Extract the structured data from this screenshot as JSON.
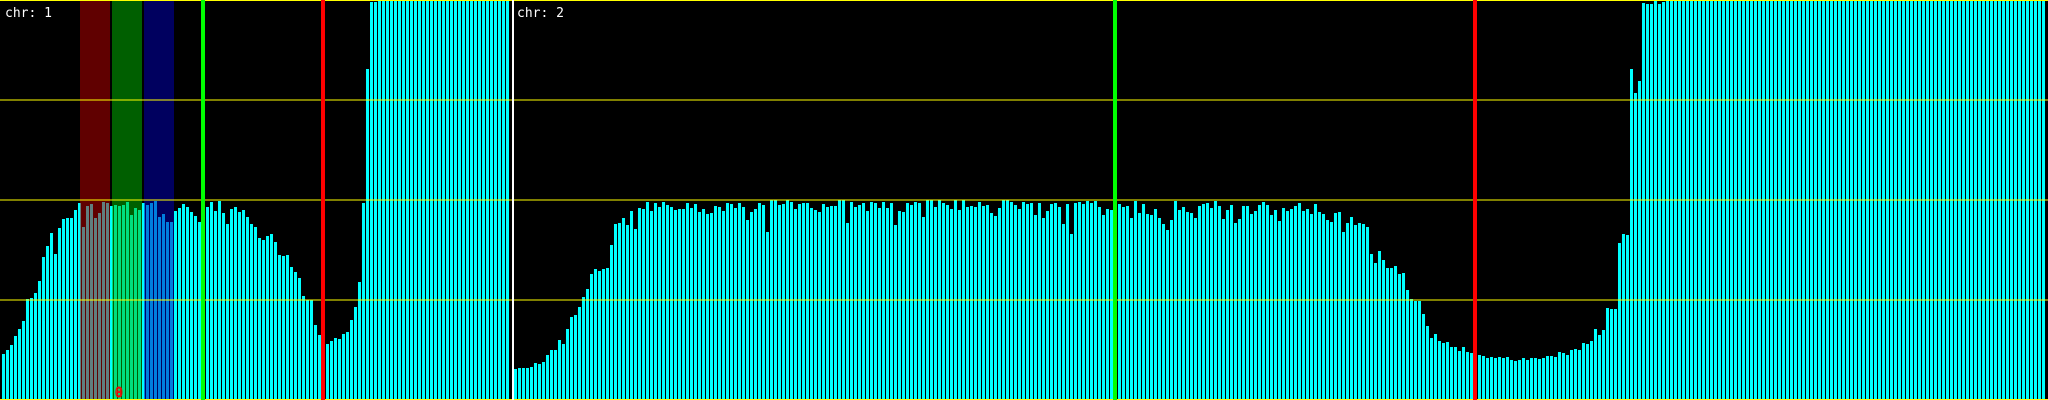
{
  "chart_data": {
    "type": "bar",
    "ylim": [
      0,
      4
    ],
    "grid": true,
    "gridlines_y": [
      0,
      1,
      2,
      3,
      4
    ],
    "colors": {
      "background": "#000000",
      "bar": "#00ffff",
      "grid": "#ffff00",
      "separator": "#ffffff",
      "label": "#ffffff",
      "marker_green": "#00ff00",
      "marker_red": "#ff0000",
      "region_red": "#c00000",
      "region_green": "#00be00",
      "region_blue": "#0000be",
      "point_label": "#ff0000"
    },
    "panels": [
      {
        "label": "chr: 1",
        "values": [
          0.46,
          0.5,
          0.55,
          0.64,
          0.71,
          0.79,
          1.01,
          1.02,
          1.07,
          1.19,
          1.43,
          1.54,
          1.67,
          1.46,
          1.72,
          1.81,
          1.82,
          1.82,
          1.9,
          1.97,
          1.73,
          1.94,
          1.96,
          1.82,
          1.87,
          1.98,
          1.97,
          1.94,
          1.95,
          1.94,
          1.95,
          1.98,
          1.85,
          1.92,
          1.9,
          1.97,
          1.95,
          1.97,
          1.99,
          1.83,
          1.86,
          1.78,
          1.78,
          1.89,
          1.92,
          1.96,
          1.93,
          1.88,
          1.84,
          1.78,
          1.86,
          1.93,
          1.98,
          1.89,
          1.99,
          1.87,
          1.76,
          1.91,
          1.93,
          1.88,
          1.9,
          1.83,
          1.76,
          1.73,
          1.62,
          1.6,
          1.64,
          1.66,
          1.58,
          1.45,
          1.44,
          1.45,
          1.33,
          1.28,
          1.22,
          1.04,
          1.0,
          1.0,
          0.75,
          0.65,
          0.61,
          0.56,
          0.59,
          0.62,
          0.61,
          0.66,
          0.68,
          0.8,
          0.93,
          1.18,
          1.97,
          3.31,
          3.98,
          3.98,
          4,
          4,
          4,
          4,
          4,
          4,
          4,
          4,
          4,
          4,
          4,
          4,
          4,
          4,
          4,
          4,
          4,
          4,
          4,
          4,
          4,
          4,
          4,
          4,
          4,
          4,
          4,
          4,
          4,
          4,
          4,
          4,
          4
        ],
        "regions": [
          {
            "color": "region_red",
            "start_bin": 19.5,
            "end_bin": 27
          },
          {
            "color": "region_green",
            "start_bin": 27.5,
            "end_bin": 35
          },
          {
            "color": "region_blue",
            "start_bin": 35.5,
            "end_bin": 43
          }
        ],
        "markers": [
          {
            "color": "marker_green",
            "bin": 50.25
          },
          {
            "color": "marker_red",
            "bin": 80.25
          }
        ],
        "point_labels": [
          {
            "text": "0",
            "bin": 28.5
          }
        ]
      },
      {
        "label": "chr: 2",
        "values": [
          0.31,
          0.32,
          0.32,
          0.32,
          0.33,
          0.37,
          0.36,
          0.38,
          0.45,
          0.5,
          0.5,
          0.6,
          0.56,
          0.71,
          0.83,
          0.85,
          0.93,
          1.03,
          1.11,
          1.26,
          1.31,
          1.29,
          1.31,
          1.32,
          1.55,
          1.76,
          1.77,
          1.82,
          1.75,
          1.89,
          1.71,
          1.92,
          1.91,
          1.98,
          1.89,
          1.97,
          1.93,
          1.98,
          1.95,
          1.93,
          1.9,
          1.91,
          1.91,
          1.97,
          1.92,
          1.96,
          1.88,
          1.91,
          1.86,
          1.87,
          1.94,
          1.93,
          1.89,
          1.97,
          1.96,
          1.92,
          1.97,
          1.93,
          1.8,
          1.88,
          1.91,
          1.97,
          1.95,
          1.68,
          2,
          2,
          1.95,
          1.96,
          2,
          1.98,
          1.91,
          1.96,
          1.97,
          1.97,
          1.92,
          1.9,
          1.88,
          1.96,
          1.93,
          1.94,
          1.94,
          2,
          2,
          1.77,
          1.98,
          1.93,
          1.95,
          1.97,
          1.89,
          1.98,
          1.97,
          1.92,
          1.98,
          1.92,
          1.97,
          1.75,
          1.89,
          1.88,
          1.97,
          1.95,
          1.98,
          1.97,
          1.83,
          2,
          2,
          1.93,
          2,
          1.97,
          1.95,
          1.91,
          2,
          1.9,
          2,
          1.93,
          1.94,
          1.93,
          1.98,
          1.94,
          1.95,
          1.87,
          1.84,
          1.92,
          2,
          2,
          1.98,
          1.95,
          1.91,
          1.98,
          1.96,
          1.97,
          1.85,
          1.97,
          1.82,
          1.89,
          1.96,
          1.97,
          1.93,
          1.76,
          1.96,
          1.66,
          1.97,
          1.98,
          1.96,
          1.99,
          1.97,
          1.99,
          1.93,
          1.85,
          1.91,
          1.9,
          1.98,
          1.96,
          1.93,
          1.94,
          1.82,
          1.99,
          1.87,
          1.96,
          1.86,
          1.85,
          1.91,
          1.82,
          1.76,
          1.7,
          1.8,
          1.99,
          1.9,
          1.93,
          1.88,
          1.87,
          1.82,
          1.94,
          1.96,
          1.97,
          1.92,
          1.99,
          1.94,
          1.81,
          1.9,
          1.95,
          1.77,
          1.81,
          1.94,
          1.94,
          1.86,
          1.89,
          1.95,
          1.98,
          1.95,
          1.85,
          1.9,
          1.79,
          1.92,
          1.89,
          1.91,
          1.94,
          1.97,
          1.89,
          1.91,
          1.86,
          1.96,
          1.88,
          1.86,
          1.8,
          1.78,
          1.87,
          1.88,
          1.68,
          1.77,
          1.83,
          1.75,
          1.77,
          1.76,
          1.73,
          1.46,
          1.37,
          1.49,
          1.4,
          1.32,
          1.32,
          1.34,
          1.26,
          1.27,
          1.1,
          1.01,
          0.99,
          0.99,
          0.86,
          0.74,
          0.62,
          0.66,
          0.59,
          0.57,
          0.58,
          0.53,
          0.53,
          0.49,
          0.53,
          0.48,
          0.47,
          0.41,
          0.45,
          0.44,
          0.42,
          0.43,
          0.42,
          0.43,
          0.42,
          0.43,
          0.4,
          0.39,
          0.4,
          0.42,
          0.4,
          0.42,
          0.42,
          0.41,
          0.42,
          0.44,
          0.44,
          0.43,
          0.48,
          0.47,
          0.45,
          0.5,
          0.51,
          0.5,
          0.57,
          0.56,
          0.59,
          0.71,
          0.65,
          0.7,
          0.92,
          0.91,
          0.91,
          1.57,
          1.66,
          1.65,
          3.31,
          3.07,
          3.19,
          3.97,
          3.96,
          3.96,
          3.99,
          3.96,
          3.98,
          4,
          4,
          4,
          4,
          4,
          4,
          4,
          4,
          4,
          4,
          4,
          4,
          4,
          4,
          4,
          4,
          4,
          4,
          4,
          4,
          4,
          4,
          4,
          4,
          4,
          4,
          4,
          4,
          4,
          4,
          4,
          4,
          4,
          4,
          4,
          4,
          4,
          4,
          4,
          4,
          4,
          4,
          4,
          4,
          4,
          4,
          4,
          4,
          4,
          4,
          4,
          4,
          4,
          4,
          4,
          4,
          4,
          4,
          4,
          4,
          4,
          4,
          4,
          4,
          4,
          4,
          4,
          4,
          4,
          4,
          4,
          4,
          4,
          4,
          4,
          4,
          4,
          4,
          4,
          4,
          4,
          4,
          4,
          4,
          4,
          4,
          4,
          4,
          4,
          4,
          4,
          4,
          4,
          4,
          4
        ],
        "regions": [],
        "markers": [
          {
            "color": "marker_green",
            "bin": 150.25
          },
          {
            "color": "marker_red",
            "bin": 240.25
          }
        ],
        "point_labels": []
      }
    ]
  }
}
